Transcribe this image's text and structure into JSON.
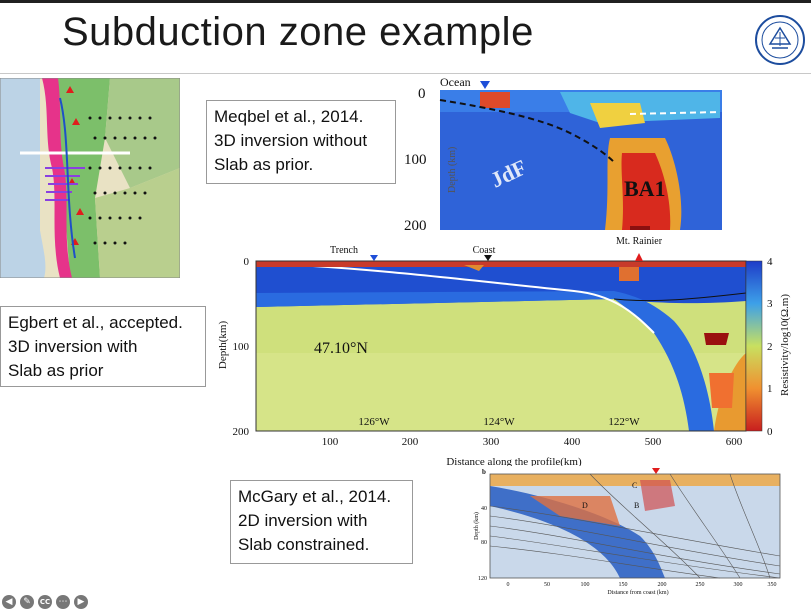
{
  "slide": {
    "title": "Subduction zone example"
  },
  "captions": {
    "meqbel": [
      "Meqbel et al., 2014.",
      "3D inversion without",
      "Slab as prior."
    ],
    "egbert": [
      "Egbert et al., accepted.",
      "3D inversion with",
      "Slab as prior"
    ],
    "mcgary": [
      "McGary et al., 2014.",
      "2D inversion with",
      "Slab constrained."
    ]
  },
  "meqbel_fig": {
    "ocean_label": "Ocean",
    "depth_ticks": [
      "0",
      "100",
      "200"
    ],
    "axis_label": "Depth (km)",
    "labels": [
      "JdF",
      "BA1"
    ]
  },
  "egbert_fig": {
    "top_labels": [
      "Trench",
      "Coast",
      "Mt. Rainier"
    ],
    "lat_label": "47.10°N",
    "lon_labels": [
      "126°W",
      "124°W",
      "122°W"
    ],
    "ylabel": "Depth(km)",
    "xlabel": "Distance along the profile(km)",
    "yticks": [
      "0",
      "100",
      "200"
    ],
    "xticks": [
      "100",
      "200",
      "300",
      "400",
      "500",
      "600"
    ],
    "colorbar_label": "Resistivity/log10(Ω.m)",
    "colorbar_ticks": [
      "4",
      "3",
      "2",
      "1",
      "0"
    ]
  },
  "mcgary_fig": {
    "panel": "b",
    "ylabel": "Depth (km)",
    "yticks": [
      "40",
      "80",
      "120"
    ],
    "xticks": [
      "0",
      "50",
      "100",
      "150",
      "200",
      "250",
      "300",
      "350"
    ],
    "xlabel": "Distance from coast (km)",
    "labels": [
      "D",
      "B",
      "C"
    ]
  },
  "nav": {
    "icons": [
      "back-icon",
      "pen-icon",
      "captions-icon",
      "more-icon",
      "forward-icon"
    ],
    "captions_text": "CC"
  },
  "colors": {
    "conductive": "#c81e1e",
    "resistive": "#1e50c8",
    "mid": "#e8e050"
  }
}
